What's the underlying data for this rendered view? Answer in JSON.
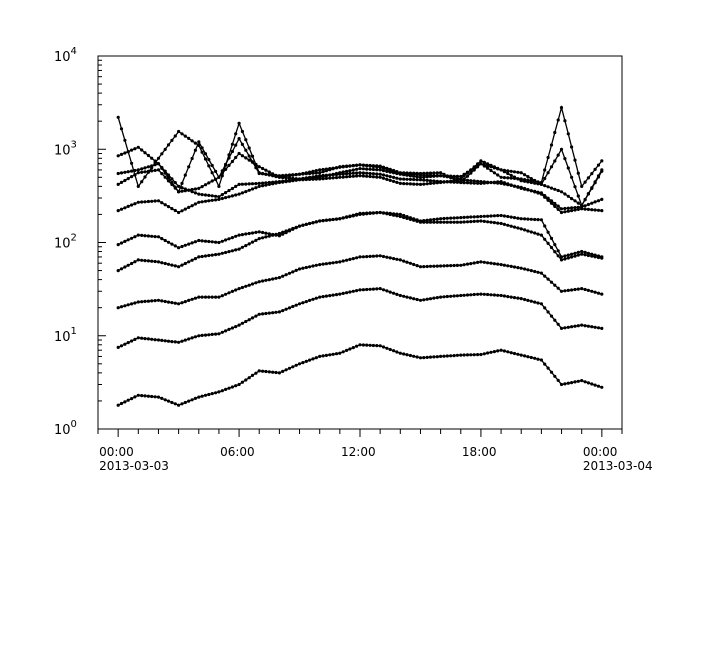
{
  "chart_data": {
    "type": "line",
    "title": "",
    "xlabel": "",
    "ylabel": "",
    "x_unit": "hours since 2013-03-03 00:00",
    "xlim_hours": [
      -1,
      25
    ],
    "ylim": [
      1,
      10000
    ],
    "y_scale": "log",
    "grid": false,
    "line_color": "#000000",
    "marker": "dot",
    "x_ticks": [
      {
        "hour": 0,
        "label": "00:00",
        "date": "2013-03-03"
      },
      {
        "hour": 6,
        "label": "06:00",
        "date": ""
      },
      {
        "hour": 12,
        "label": "12:00",
        "date": ""
      },
      {
        "hour": 18,
        "label": "18:00",
        "date": ""
      },
      {
        "hour": 24,
        "label": "00:00",
        "date": "2013-03-04"
      }
    ],
    "y_ticks": [
      {
        "value": 1,
        "base": "10",
        "exp": "0"
      },
      {
        "value": 10,
        "base": "10",
        "exp": "1"
      },
      {
        "value": 100,
        "base": "10",
        "exp": "2"
      },
      {
        "value": 1000,
        "base": "10",
        "exp": "3"
      },
      {
        "value": 10000,
        "base": "10",
        "exp": "4"
      }
    ],
    "x": [
      0,
      1,
      2,
      3,
      4,
      5,
      6,
      7,
      8,
      9,
      10,
      11,
      12,
      13,
      14,
      15,
      16,
      17,
      18,
      19,
      20,
      21,
      22,
      23,
      24
    ],
    "series": [
      {
        "values": [
          1.8,
          2.3,
          2.2,
          1.8,
          2.2,
          2.5,
          3.0,
          4.2,
          4.0,
          5.0,
          6.0,
          6.5,
          8.0,
          7.8,
          6.5,
          5.8,
          6.0,
          6.2,
          6.3,
          7.0,
          6.2,
          5.5,
          3.0,
          3.3,
          2.8
        ]
      },
      {
        "values": [
          7.5,
          9.5,
          9,
          8.5,
          10,
          10.5,
          13,
          17,
          18,
          22,
          26,
          28,
          31,
          32,
          27,
          24,
          26,
          27,
          28,
          27,
          25,
          22,
          12,
          13,
          12
        ]
      },
      {
        "values": [
          20,
          23,
          24,
          22,
          26,
          26,
          32,
          38,
          42,
          52,
          58,
          62,
          70,
          72,
          65,
          55,
          56,
          57,
          62,
          58,
          53,
          47,
          30,
          32,
          28
        ]
      },
      {
        "values": [
          50,
          65,
          62,
          55,
          70,
          75,
          85,
          110,
          125,
          150,
          170,
          180,
          200,
          210,
          190,
          165,
          165,
          165,
          170,
          160,
          140,
          120,
          65,
          75,
          68
        ]
      },
      {
        "values": [
          95,
          120,
          115,
          88,
          105,
          100,
          120,
          130,
          118,
          150,
          170,
          180,
          205,
          210,
          200,
          170,
          180,
          185,
          190,
          195,
          180,
          175,
          70,
          80,
          70
        ]
      },
      {
        "values": [
          220,
          270,
          280,
          210,
          270,
          290,
          330,
          400,
          440,
          470,
          480,
          500,
          520,
          500,
          430,
          420,
          440,
          470,
          450,
          430,
          390,
          330,
          210,
          230,
          220
        ]
      },
      {
        "values": [
          550,
          600,
          700,
          400,
          330,
          310,
          420,
          430,
          450,
          480,
          520,
          540,
          560,
          540,
          480,
          470,
          450,
          440,
          430,
          450,
          380,
          340,
          230,
          240,
          290
        ]
      },
      {
        "values": [
          850,
          1050,
          700,
          350,
          380,
          500,
          900,
          650,
          500,
          480,
          500,
          560,
          620,
          600,
          540,
          500,
          520,
          510,
          700,
          600,
          560,
          420,
          350,
          250,
          580
        ]
      },
      {
        "values": [
          2200,
          400,
          800,
          1550,
          1100,
          400,
          1900,
          560,
          500,
          540,
          600,
          640,
          680,
          660,
          560,
          550,
          560,
          440,
          700,
          500,
          480,
          440,
          2800,
          400,
          750
        ]
      },
      {
        "values": [
          420,
          560,
          600,
          350,
          1200,
          500,
          1300,
          550,
          520,
          540,
          560,
          650,
          680,
          640,
          550,
          530,
          520,
          480,
          750,
          600,
          460,
          420,
          1000,
          250,
          600
        ]
      }
    ]
  }
}
